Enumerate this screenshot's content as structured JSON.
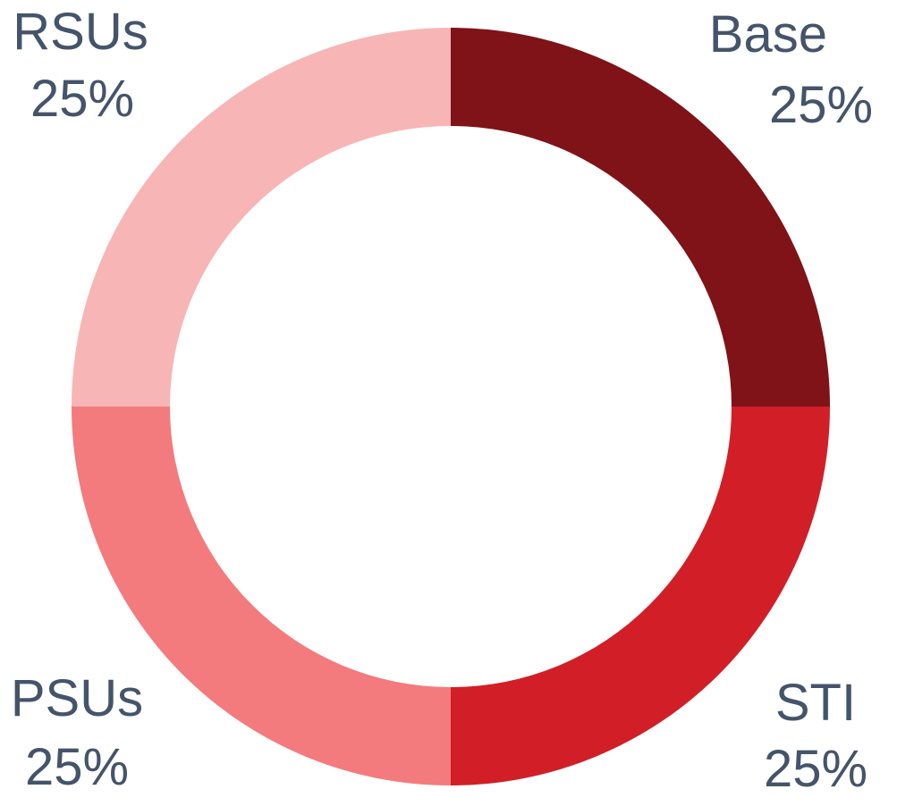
{
  "chart_data": {
    "type": "pie",
    "variant": "donut",
    "title": "",
    "slices": [
      {
        "label": "Base",
        "value": 25,
        "value_label": "25%",
        "color": "#7f1318"
      },
      {
        "label": "STI",
        "value": 25,
        "value_label": "25%",
        "color": "#d21f27"
      },
      {
        "label": "PSUs",
        "value": 25,
        "value_label": "25%",
        "color": "#f37b7d"
      },
      {
        "label": "RSUs",
        "value": 25,
        "value_label": "25%",
        "color": "#f8b5b6"
      }
    ],
    "legend": "none",
    "label_color": "#44546a"
  }
}
